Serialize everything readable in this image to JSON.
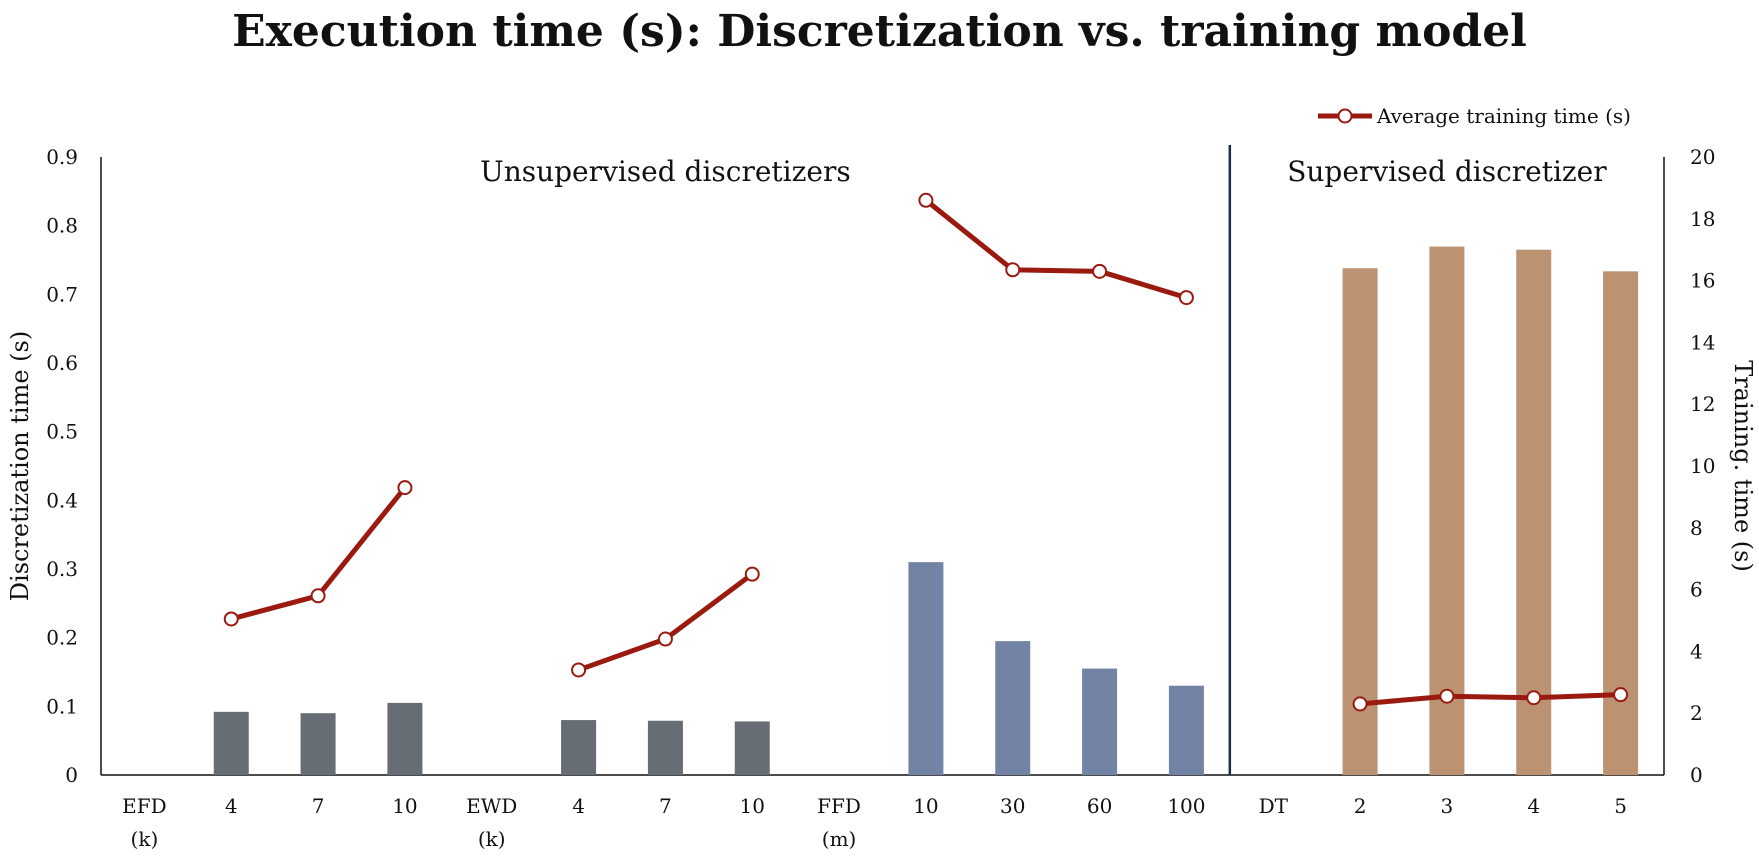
{
  "chart_data": {
    "type": "bar",
    "title": "Execution time (s): Discretization vs. training model",
    "ylabel": "Discretization time (s)",
    "y2label": "Training. time (s)",
    "ylim": [
      0,
      0.9
    ],
    "y2lim": [
      0,
      20
    ],
    "yticks": [
      "0",
      "0.1",
      "0.2",
      "0.3",
      "0.4",
      "0.5",
      "0.6",
      "0.7",
      "0.8",
      "0.9"
    ],
    "y2ticks": [
      "0",
      "2",
      "4",
      "6",
      "8",
      "10",
      "12",
      "14",
      "16",
      "18",
      "20"
    ],
    "section_labels": [
      "Unsupervised discretizers",
      "Supervised discretizer"
    ],
    "divider_after_index": 13,
    "legend": {
      "line_label": "Average training time (s)",
      "position": "top-right"
    },
    "categories": [
      {
        "line1": "EFD",
        "line2": "(k)"
      },
      {
        "line1": "4",
        "line2": ""
      },
      {
        "line1": "7",
        "line2": ""
      },
      {
        "line1": "10",
        "line2": ""
      },
      {
        "line1": "EWD",
        "line2": "(k)"
      },
      {
        "line1": "4",
        "line2": ""
      },
      {
        "line1": "7",
        "line2": ""
      },
      {
        "line1": "10",
        "line2": ""
      },
      {
        "line1": "FFD",
        "line2": "(m)"
      },
      {
        "line1": "10",
        "line2": ""
      },
      {
        "line1": "30",
        "line2": ""
      },
      {
        "line1": "60",
        "line2": ""
      },
      {
        "line1": "100",
        "line2": ""
      },
      {
        "line1": "DT",
        "line2": ""
      },
      {
        "line1": "2",
        "line2": ""
      },
      {
        "line1": "3",
        "line2": ""
      },
      {
        "line1": "4",
        "line2": ""
      },
      {
        "line1": "5",
        "line2": ""
      }
    ],
    "bar_series": {
      "axis": "left",
      "values": [
        null,
        0.092,
        0.09,
        0.105,
        null,
        0.08,
        0.079,
        0.078,
        null,
        0.31,
        0.195,
        0.155,
        0.13,
        null,
        null,
        null,
        null,
        null
      ]
    },
    "bar_series_right": {
      "axis": "right",
      "values": [
        null,
        null,
        null,
        null,
        null,
        null,
        null,
        null,
        null,
        null,
        null,
        null,
        null,
        null,
        16.4,
        17.1,
        17.0,
        16.3
      ]
    },
    "line_series": {
      "name": "Average training time (s)",
      "axis": "right",
      "segments": [
        {
          "indices": [
            1,
            2,
            3
          ],
          "values": [
            5.05,
            5.8,
            9.3
          ]
        },
        {
          "indices": [
            5,
            6,
            7
          ],
          "values": [
            3.4,
            4.4,
            6.5
          ]
        },
        {
          "indices": [
            9,
            10,
            11,
            12
          ],
          "values": [
            18.6,
            16.35,
            16.3,
            15.45
          ]
        },
        {
          "indices": [
            14,
            15,
            16,
            17
          ],
          "values": [
            2.3,
            2.55,
            2.5,
            2.6
          ]
        }
      ]
    },
    "colors": {
      "efd_ewd_bars": "#666d75",
      "ffd_bars": "#7383a5",
      "dt_bars": "#bb9272",
      "line": "#9b1a10",
      "marker_fill": "#ffffff",
      "divider": "#1a2a4a"
    }
  }
}
